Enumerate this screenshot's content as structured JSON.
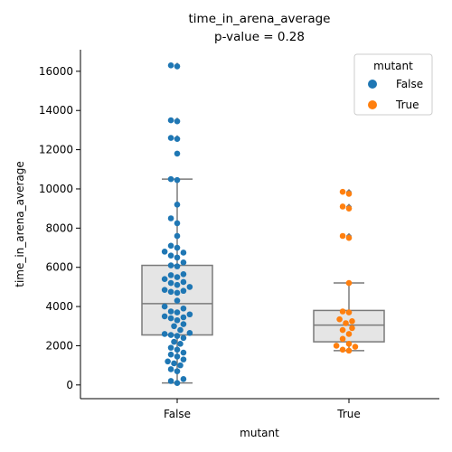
{
  "chart_data": {
    "type": "box+swarm",
    "title": "time_in_arena_average",
    "subtitle": "p-value = 0.28",
    "xlabel": "mutant",
    "ylabel": "time_in_arena_average",
    "categories": [
      "False",
      "True"
    ],
    "ylim": [
      -700,
      17100
    ],
    "yticks": [
      0,
      2000,
      4000,
      6000,
      8000,
      10000,
      12000,
      14000,
      16000
    ],
    "legend": {
      "title": "mutant",
      "position": "top-right",
      "entries": [
        {
          "label": "False",
          "color": "#1f77b4"
        },
        {
          "label": "True",
          "color": "#ff7f0e"
        }
      ]
    },
    "box": {
      "fill": "#e5e5e5",
      "stroke": "#7a7a7a"
    },
    "series": [
      {
        "name": "False",
        "color": "#1f77b4",
        "box": {
          "whisker_low": 100,
          "q1": 2550,
          "median": 4150,
          "q3": 6100,
          "whisker_high": 10500
        },
        "outliers": [
          11800,
          12550,
          12600,
          13450,
          13500,
          16250,
          16300
        ],
        "values": [
          100,
          200,
          300,
          700,
          800,
          1000,
          1100,
          1200,
          1300,
          1450,
          1550,
          1650,
          1800,
          1900,
          2100,
          2200,
          2400,
          2500,
          2550,
          2600,
          2650,
          2800,
          3000,
          3100,
          3300,
          3400,
          3450,
          3500,
          3600,
          3700,
          3750,
          3900,
          4000,
          4300,
          4700,
          4750,
          4800,
          4850,
          5000,
          5100,
          5200,
          5250,
          5400,
          5500,
          5600,
          5650,
          6050,
          6100,
          6250,
          6500,
          6600,
          6750,
          6800,
          7000,
          7100,
          7600,
          8250,
          8500,
          9200,
          10450,
          10500,
          11800,
          12550,
          12600,
          13450,
          13500,
          16250,
          16300
        ]
      },
      {
        "name": "True",
        "color": "#ff7f0e",
        "box": {
          "whisker_low": 1750,
          "q1": 2200,
          "median": 3050,
          "q3": 3800,
          "whisker_high": 5200
        },
        "outliers": [
          7500,
          7600,
          9000,
          9100,
          9750,
          9850
        ],
        "values": [
          1750,
          1800,
          1950,
          2000,
          2100,
          2350,
          2600,
          2800,
          2900,
          3150,
          3250,
          3350,
          3700,
          3750,
          5200,
          7500,
          7600,
          9000,
          9100,
          9750,
          9850
        ]
      }
    ]
  }
}
